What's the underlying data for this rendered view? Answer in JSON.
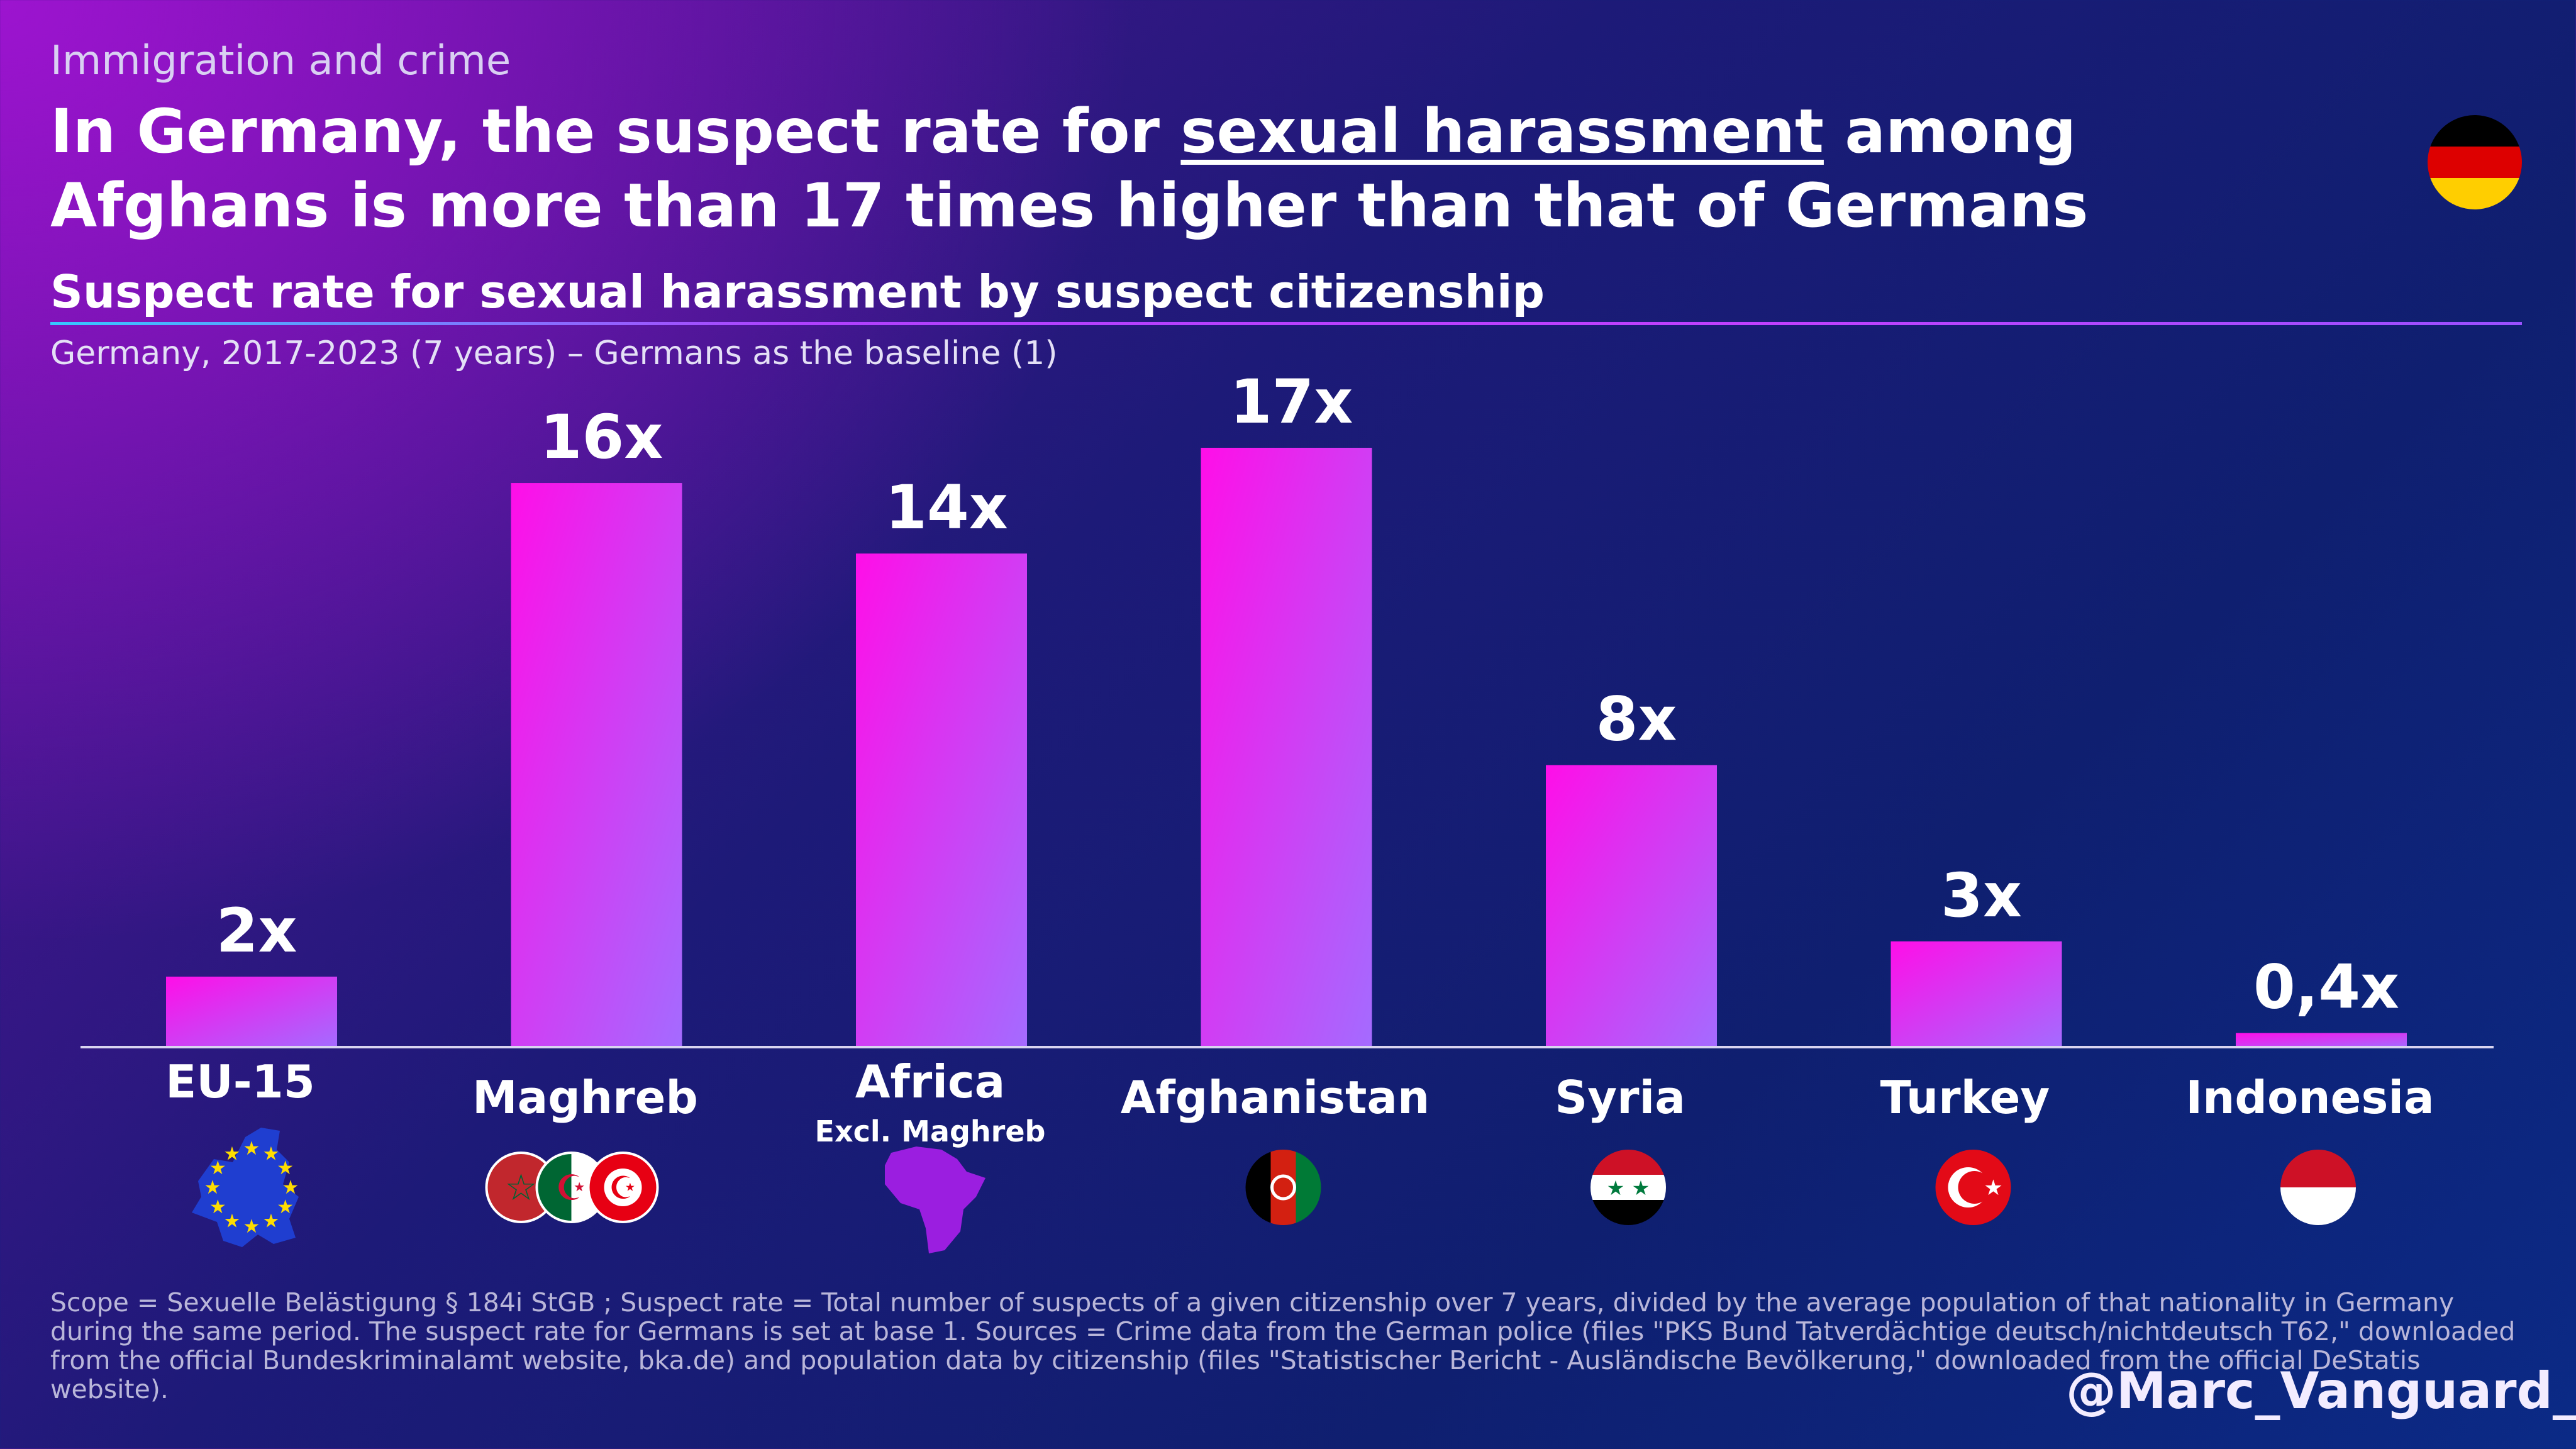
{
  "header": {
    "kicker": "Immigration and crime",
    "headline_part1": "In Germany, the suspect rate for ",
    "headline_underlined": "sexual harassment",
    "headline_part2": " among Afghans is more than 17 times higher than that of Germans",
    "flag_icon": "germany-flag-icon"
  },
  "chart_data": {
    "type": "bar",
    "title": "Suspect rate for sexual harassment by suspect citizenship",
    "subtitle": "Germany, 2017-2023 (7 years) – Germans as the baseline (1)",
    "categories": [
      "EU-15",
      "Maghreb",
      "Africa",
      "Afghanistan",
      "Syria",
      "Turkey",
      "Indonesia"
    ],
    "category_sublabels": [
      "",
      "",
      "Excl. Maghreb",
      "",
      "",
      "",
      ""
    ],
    "values": [
      2,
      16,
      14,
      17,
      8,
      3,
      0.4
    ],
    "value_labels": [
      "2x",
      "16x",
      "14x",
      "17x",
      "8x",
      "3x",
      "0,4x"
    ],
    "category_icons": [
      "eu-map-icon",
      "maghreb-flags-icon",
      "africa-map-icon",
      "afghanistan-flag-icon",
      "syria-flag-icon",
      "turkey-flag-icon",
      "indonesia-flag-icon"
    ],
    "ylim": [
      0,
      17.5
    ],
    "grid": false,
    "bar_gradient": [
      "#ff0ee8",
      "#a46bff"
    ]
  },
  "footer": {
    "footnote": "Scope = Sexuelle Belästigung § 184i StGB ; Suspect rate = Total number of suspects of a given citizenship over 7 years, divided by the average population of that nationality in Germany during the same period. The suspect rate for Germans is set at base 1. Sources = Crime data from the German police (files \"PKS Bund Tatverdächtige deutsch/nichtdeutsch T62,\" downloaded from the official Bundeskriminalamt website, bka.de) and population data by citizenship (files \"Statistischer Bericht - Ausländische Bevölkerung,\" downloaded from the official DeStatis website).",
    "handle": "@Marc_Vanguard_i"
  }
}
